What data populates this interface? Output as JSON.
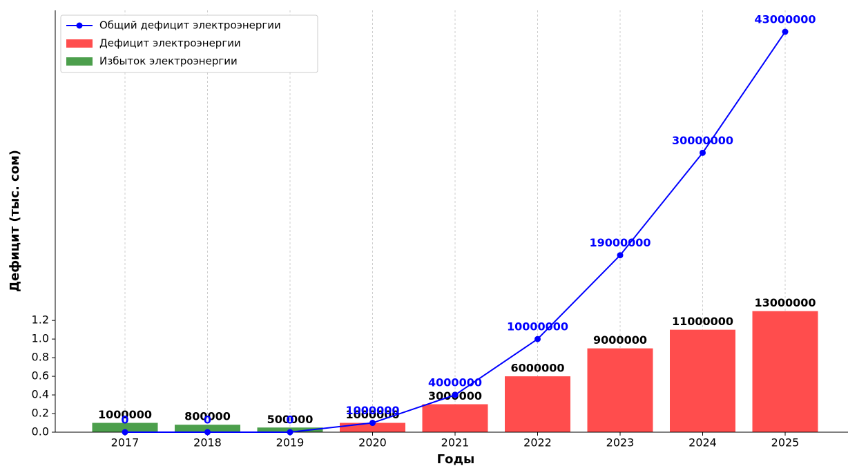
{
  "chart_data": {
    "type": "bar_line",
    "xlabel": "Годы",
    "ylabel": "Дефицит (тыс. сом)",
    "categories": [
      "2017",
      "2018",
      "2019",
      "2020",
      "2021",
      "2022",
      "2023",
      "2024",
      "2025"
    ],
    "series": [
      {
        "name": "Общий дефицит электроэнергии",
        "type": "line",
        "color": "#0000ff",
        "values": [
          0,
          0,
          0,
          0.1,
          0.4,
          1.0,
          1.9,
          3.0,
          4.3
        ],
        "value_labels": [
          "0",
          "0",
          "0",
          "1000000",
          "4000000",
          "10000000",
          "19000000",
          "30000000",
          "43000000"
        ]
      },
      {
        "name": "Дефицит электроэнергии",
        "type": "bar",
        "color": "#ff4d4d",
        "values": [
          null,
          null,
          null,
          0.1,
          0.3,
          0.6,
          0.9,
          1.1,
          1.3
        ],
        "value_labels": [
          null,
          null,
          null,
          "1000000",
          "3000000",
          "6000000",
          "9000000",
          "11000000",
          "13000000"
        ]
      },
      {
        "name": "Избыток электроэнергии",
        "type": "bar",
        "color": "#4c9f4c",
        "values": [
          0.1,
          0.08,
          0.05,
          null,
          null,
          null,
          null,
          null,
          null
        ],
        "value_labels": [
          "1000000",
          "800000",
          "500000",
          null,
          null,
          null,
          null,
          null,
          null
        ]
      }
    ],
    "ylim": [
      0,
      4.53
    ],
    "yticks": [
      {
        "value": 0,
        "label": "0.0"
      },
      0.2,
      0.4,
      0.6,
      0.8,
      {
        "value": 1,
        "label": "1.0"
      },
      1.2
    ],
    "xgrid": true,
    "legend": "upper left"
  }
}
